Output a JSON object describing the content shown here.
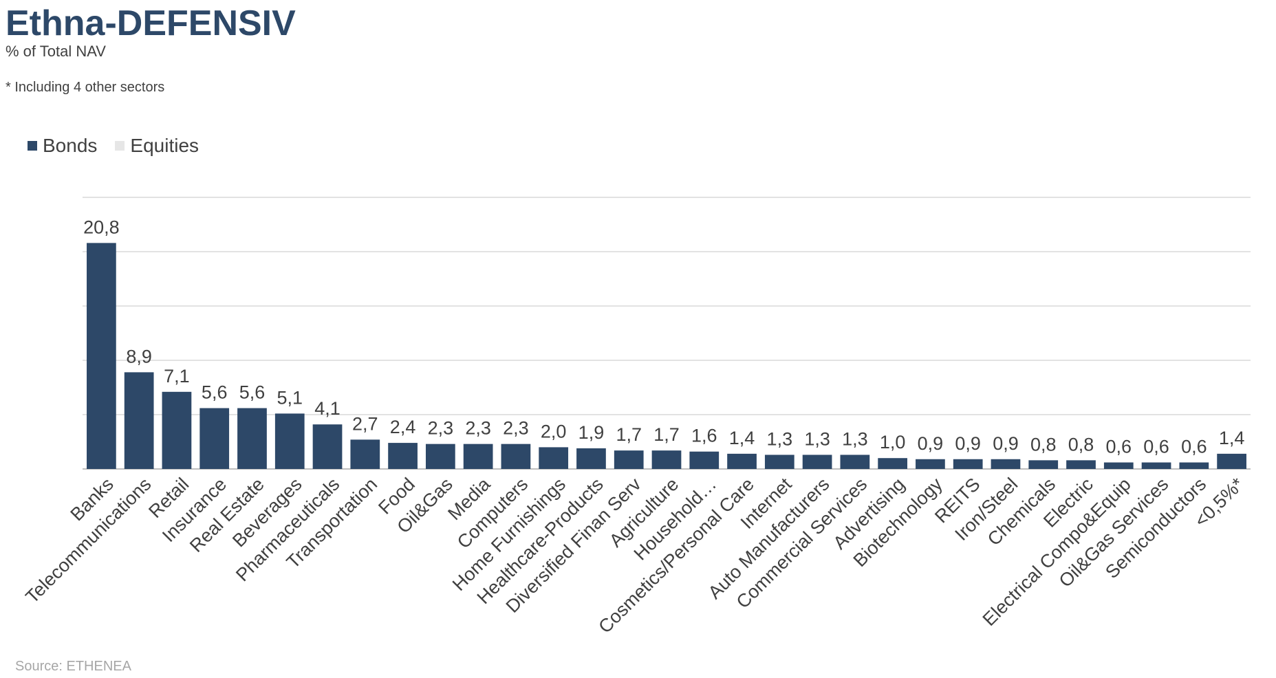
{
  "header": {
    "title": "Ethna-DEFENSIV",
    "subtitle": "% of Total NAV",
    "note": "* Including 4 other sectors"
  },
  "footer": {
    "source": "Source: ETHENEA"
  },
  "colors": {
    "bonds": "#2d4868",
    "equities": "#e6e6e6",
    "grid": "#d9d9d9",
    "axis": "#bfbfbf"
  },
  "chart_data": {
    "type": "bar",
    "categories": [
      "Banks",
      "Telecommunications",
      "Retail",
      "Insurance",
      "Real Estate",
      "Beverages",
      "Pharmaceuticals",
      "Transportation",
      "Food",
      "Oil&Gas",
      "Media",
      "Computers",
      "Home Furnishings",
      "Healthcare-Products",
      "Diversified Finan Serv",
      "Agriculture",
      "Household…",
      "Cosmetics/Personal Care",
      "Internet",
      "Auto Manufacturers",
      "Commercial Services",
      "Advertising",
      "Biotechnology",
      "REITS",
      "Iron/Steel",
      "Chemicals",
      "Electric",
      "Electrical Compo&Equip",
      "Oil&Gas Services",
      "Semiconductors",
      "<0,5%*"
    ],
    "series": [
      {
        "name": "Bonds",
        "values": [
          20.8,
          8.9,
          7.1,
          5.6,
          5.6,
          5.1,
          4.1,
          2.7,
          2.4,
          2.3,
          2.3,
          2.3,
          2.0,
          1.9,
          1.7,
          1.7,
          1.6,
          1.4,
          1.3,
          1.3,
          1.3,
          1.0,
          0.9,
          0.9,
          0.9,
          0.8,
          0.8,
          0.6,
          0.6,
          0.6,
          1.4
        ],
        "labels": [
          "20,8",
          "8,9",
          "7,1",
          "5,6",
          "5,6",
          "5,1",
          "4,1",
          "2,7",
          "2,4",
          "2,3",
          "2,3",
          "2,3",
          "2,0",
          "1,9",
          "1,7",
          "1,7",
          "1,6",
          "1,4",
          "1,3",
          "1,3",
          "1,3",
          "1,0",
          "0,9",
          "0,9",
          "0,9",
          "0,8",
          "0,8",
          "0,6",
          "0,6",
          "0,6",
          "1,4"
        ]
      },
      {
        "name": "Equities",
        "values": [
          0,
          0,
          0,
          0,
          0,
          0,
          0,
          0,
          0,
          0,
          0,
          0,
          0,
          0,
          0,
          0,
          0,
          0,
          0,
          0,
          0,
          0,
          0,
          0,
          0,
          0,
          0,
          0,
          0,
          0,
          0
        ]
      }
    ],
    "ylim": [
      0,
      25
    ],
    "y_gridlines": [
      5,
      10,
      15,
      20,
      25
    ],
    "grid": true,
    "legend_position": "top-left",
    "data_labels": true,
    "stacked": true
  }
}
